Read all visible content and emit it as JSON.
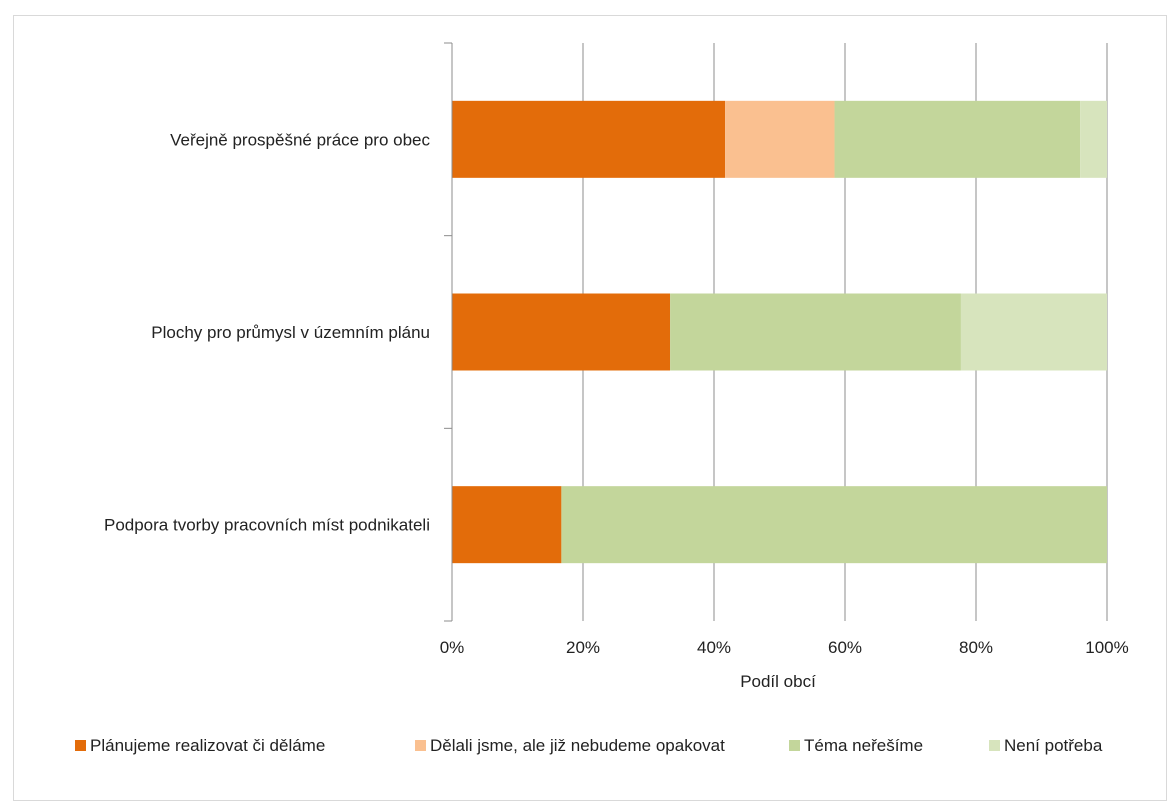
{
  "chart_data": {
    "type": "bar",
    "orientation": "horizontal",
    "stacked": "percent",
    "categories": [
      "Veřejně prospěšné práce pro obec",
      "Plochy pro průmysl v územním plánu",
      "Podpora tvorby pracovních míst podnikateli"
    ],
    "series": [
      {
        "name": "Plánujeme realizovat či děláme",
        "color": "#E36C0A",
        "values": [
          41.7,
          33.3,
          16.7
        ]
      },
      {
        "name": "Dělali jsme, ale již nebudeme opakovat",
        "color": "#FAC090",
        "values": [
          16.7,
          0,
          0
        ]
      },
      {
        "name": "Téma neřešíme",
        "color": "#C3D69B",
        "values": [
          37.5,
          44.4,
          83.3
        ]
      },
      {
        "name": "Není potřeba",
        "color": "#D7E4BD",
        "values": [
          4.1,
          22.3,
          0
        ]
      }
    ],
    "xlabel": "Podíl obcí",
    "ylabel": "",
    "xlim": [
      0,
      100
    ],
    "xticks": [
      "0%",
      "20%",
      "40%",
      "60%",
      "80%",
      "100%"
    ],
    "grid": true,
    "legend_position": "bottom"
  }
}
